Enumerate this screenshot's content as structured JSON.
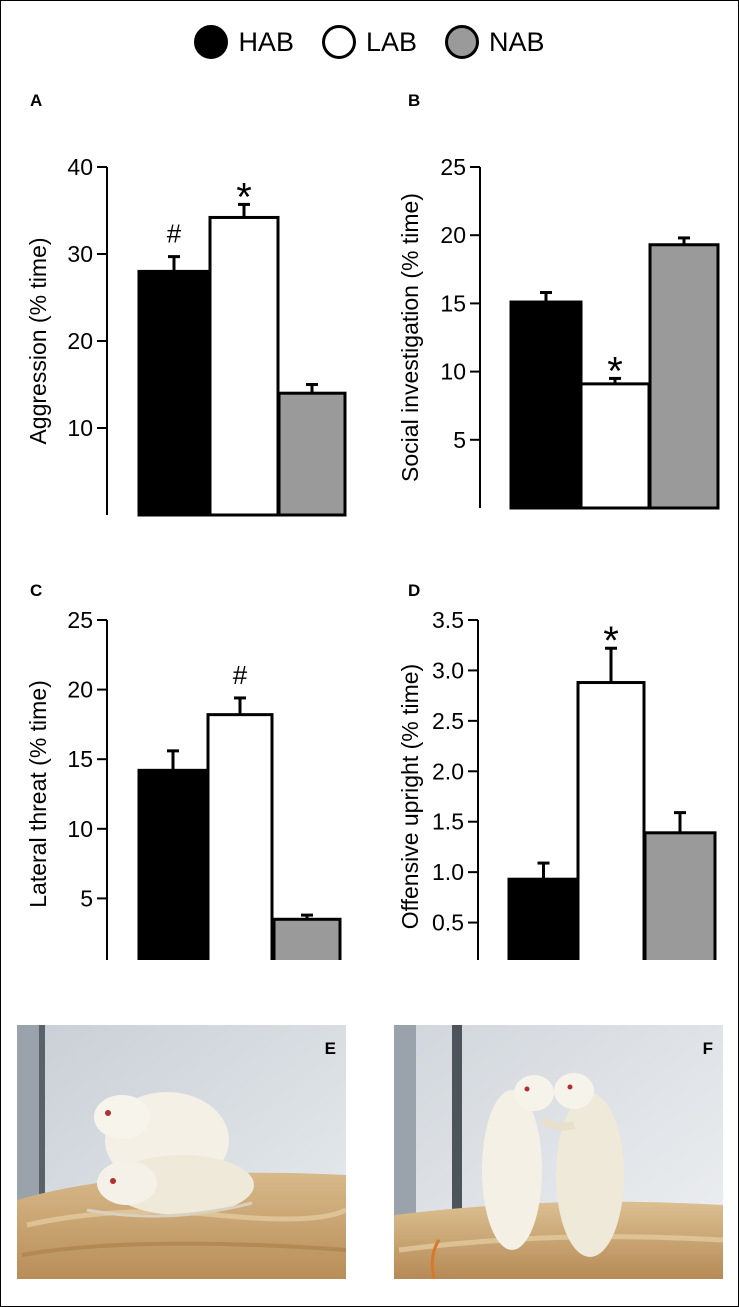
{
  "legend": [
    {
      "label": "HAB",
      "color": "#000000"
    },
    {
      "label": "LAB",
      "color": "#ffffff"
    },
    {
      "label": "NAB",
      "color": "#9a9a9a"
    }
  ],
  "chart_data": [
    {
      "type": "bar",
      "panel": "A",
      "ylabel": "Aggression (% time)",
      "categories": [
        "HAB",
        "LAB",
        "NAB"
      ],
      "values": [
        28.0,
        34.2,
        14.0
      ],
      "errors": [
        1.7,
        1.5,
        1.0
      ],
      "ylim": [
        0,
        40
      ],
      "yticks": [
        10,
        20,
        30,
        40
      ],
      "marks": [
        "#",
        "*",
        ""
      ]
    },
    {
      "type": "bar",
      "panel": "B",
      "ylabel": "Social investigation (% time)",
      "categories": [
        "HAB",
        "LAB",
        "NAB"
      ],
      "values": [
        15.1,
        9.1,
        19.3
      ],
      "errors": [
        0.7,
        0.4,
        0.5
      ],
      "ylim": [
        0,
        25
      ],
      "yticks": [
        5,
        10,
        15,
        20,
        25
      ],
      "marks": [
        "",
        "*",
        ""
      ]
    },
    {
      "type": "bar",
      "panel": "C",
      "ylabel": "Lateral threat (% time)",
      "categories": [
        "HAB",
        "LAB",
        "NAB"
      ],
      "values": [
        14.2,
        18.2,
        3.5
      ],
      "errors": [
        1.4,
        1.2,
        0.3
      ],
      "ylim": [
        0,
        25
      ],
      "yticks": [
        5,
        10,
        15,
        20,
        25
      ],
      "marks": [
        "",
        "#",
        ""
      ]
    },
    {
      "type": "bar",
      "panel": "D",
      "ylabel": "Offensive upright (% time)",
      "categories": [
        "HAB",
        "LAB",
        "NAB"
      ],
      "values": [
        0.93,
        2.88,
        1.39
      ],
      "errors": [
        0.16,
        0.34,
        0.2
      ],
      "ylim": [
        0,
        3.5
      ],
      "yticks": [
        0.5,
        1.0,
        1.5,
        2.0,
        2.5,
        3.0,
        3.5
      ],
      "yticklabels": [
        "0.5",
        "1.0",
        "1.5",
        "2.0",
        "2.5",
        "3.0",
        "3.5"
      ],
      "marks": [
        "",
        "*",
        ""
      ]
    }
  ],
  "photos": [
    {
      "label": "E"
    },
    {
      "label": "F"
    }
  ]
}
